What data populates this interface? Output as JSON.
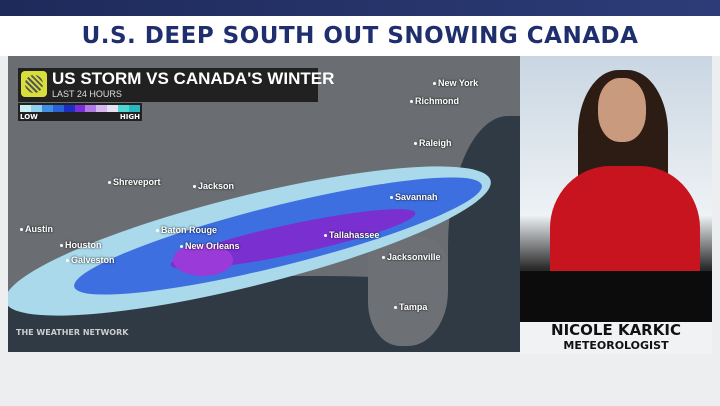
{
  "headline": "U.S. DEEP SOUTH OUT SNOWING CANADA",
  "map": {
    "title": "US STORM VS CANADA'S WINTER",
    "subtitle": "LAST 24 HOURS",
    "scale": {
      "low": "LOW",
      "high": "HIGH",
      "colors": [
        "#c8eef2",
        "#8fd0ee",
        "#3f8fe6",
        "#2a62d8",
        "#1c2fc0",
        "#7a2fd8",
        "#b07ae6",
        "#d6b8ee",
        "#e6e2f2",
        "#4fd6d2",
        "#2ab8c0"
      ]
    },
    "watermark": "THE WEATHER NETWORK",
    "cities": [
      "New York",
      "Richmond",
      "Raleigh",
      "Shreveport",
      "Jackson",
      "Savannah",
      "Austin",
      "Baton Rouge",
      "Houston",
      "New Orleans",
      "Tallahassee",
      "Galveston",
      "Jacksonville",
      "Tampa"
    ]
  },
  "presenter": {
    "name": "NICOLE KARKIC",
    "role": "METEOROLOGIST"
  }
}
